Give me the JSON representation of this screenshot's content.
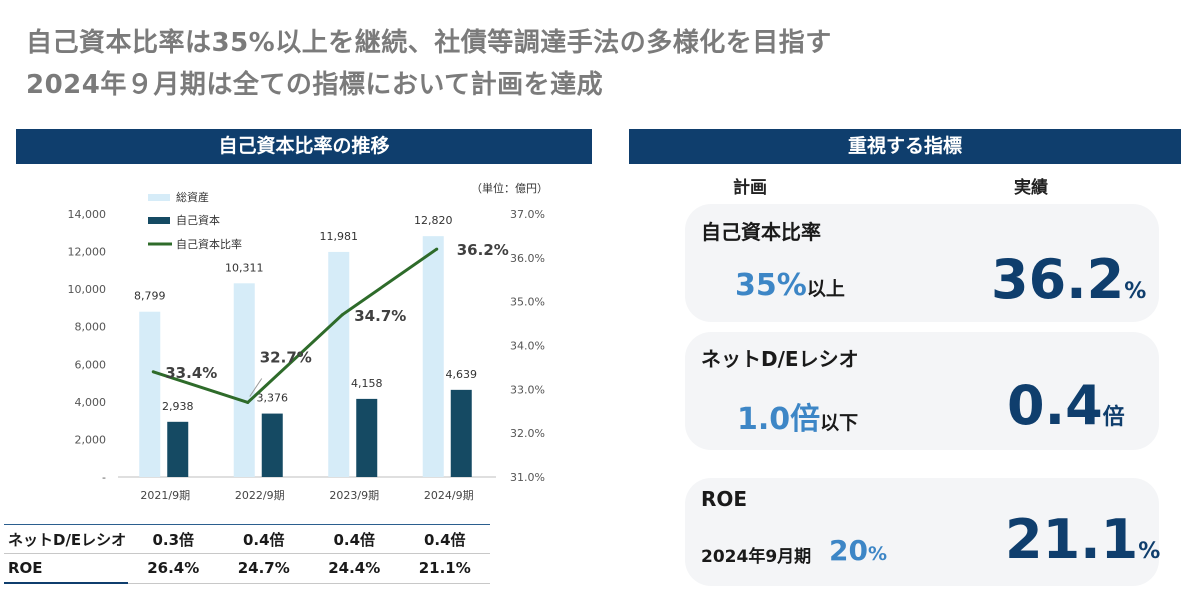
{
  "headline": {
    "line1": "自己資本比率は35%以上を継続、社債等調達手法の多様化を目指す",
    "line2": "2024年９月期は全ての指標において計画を達成"
  },
  "left_panel": {
    "title": "自己資本比率の推移"
  },
  "chart_data": {
    "type": "bar",
    "unit_note": "（単位：億円）",
    "categories": [
      "2021/9期",
      "2022/9期",
      "2023/9期",
      "2024/9期"
    ],
    "series": [
      {
        "name": "総資産",
        "kind": "bar",
        "axis": "left",
        "color": "#d6ecf8",
        "values": [
          8799,
          10311,
          11981,
          12820
        ],
        "labels": [
          "8,799",
          "10,311",
          "11,981",
          "12,820"
        ]
      },
      {
        "name": "自己資本",
        "kind": "bar",
        "axis": "left",
        "color": "#154a63",
        "values": [
          2938,
          3376,
          4158,
          4639
        ],
        "labels": [
          "2,938",
          "3,376",
          "4,158",
          "4,639"
        ]
      },
      {
        "name": "自己資本比率",
        "kind": "line",
        "axis": "right",
        "color": "#2e6b2a",
        "values": [
          33.4,
          32.7,
          34.7,
          36.2
        ],
        "labels": [
          "33.4%",
          "32.7%",
          "34.7%",
          "36.2%"
        ]
      }
    ],
    "left_axis": {
      "ylim": [
        0,
        14000
      ],
      "ticks": [
        0,
        2000,
        4000,
        6000,
        8000,
        10000,
        12000,
        14000
      ],
      "tick_labels": [
        "-",
        "2,000",
        "4,000",
        "6,000",
        "8,000",
        "10,000",
        "12,000",
        "14,000"
      ]
    },
    "right_axis": {
      "ylim": [
        31,
        37
      ],
      "ticks": [
        31,
        32,
        33,
        34,
        35,
        36,
        37
      ],
      "tick_labels": [
        "31.0%",
        "32.0%",
        "33.0%",
        "34.0%",
        "35.0%",
        "36.0%",
        "37.0%"
      ]
    },
    "legend_placement": "top-left",
    "grid": false
  },
  "metrics_table": {
    "rows": [
      {
        "label": "ネットD/Eレシオ",
        "values": [
          "0.3倍",
          "0.4倍",
          "0.4倍",
          "0.4倍"
        ]
      },
      {
        "label": "ROE",
        "values": [
          "26.4%",
          "24.7%",
          "24.4%",
          "21.1%"
        ]
      }
    ]
  },
  "right_panel": {
    "title": "重視する指標",
    "col_plan": "計画",
    "col_actual": "実績",
    "cards": [
      {
        "title": "自己資本比率",
        "plan_num": "35%",
        "plan_unit": "以上",
        "actual_num": "36.2",
        "actual_unit": "%"
      },
      {
        "title": "ネットD/Eレシオ",
        "plan_num": "1.0倍",
        "plan_unit": "以下",
        "actual_num": "0.4",
        "actual_unit": "倍"
      },
      {
        "title": "ROE",
        "sub_label": "2024年9月期",
        "plan_num": "20",
        "plan_unit": "%",
        "actual_num": "21.1",
        "actual_unit": "%"
      }
    ]
  },
  "colors": {
    "header_bg": "#0f3e6d",
    "plan_blue": "#3d86c6",
    "actual_navy": "#0f3e6d",
    "headline_gray": "#7b7b7b",
    "card_bg": "#f4f5f7"
  }
}
